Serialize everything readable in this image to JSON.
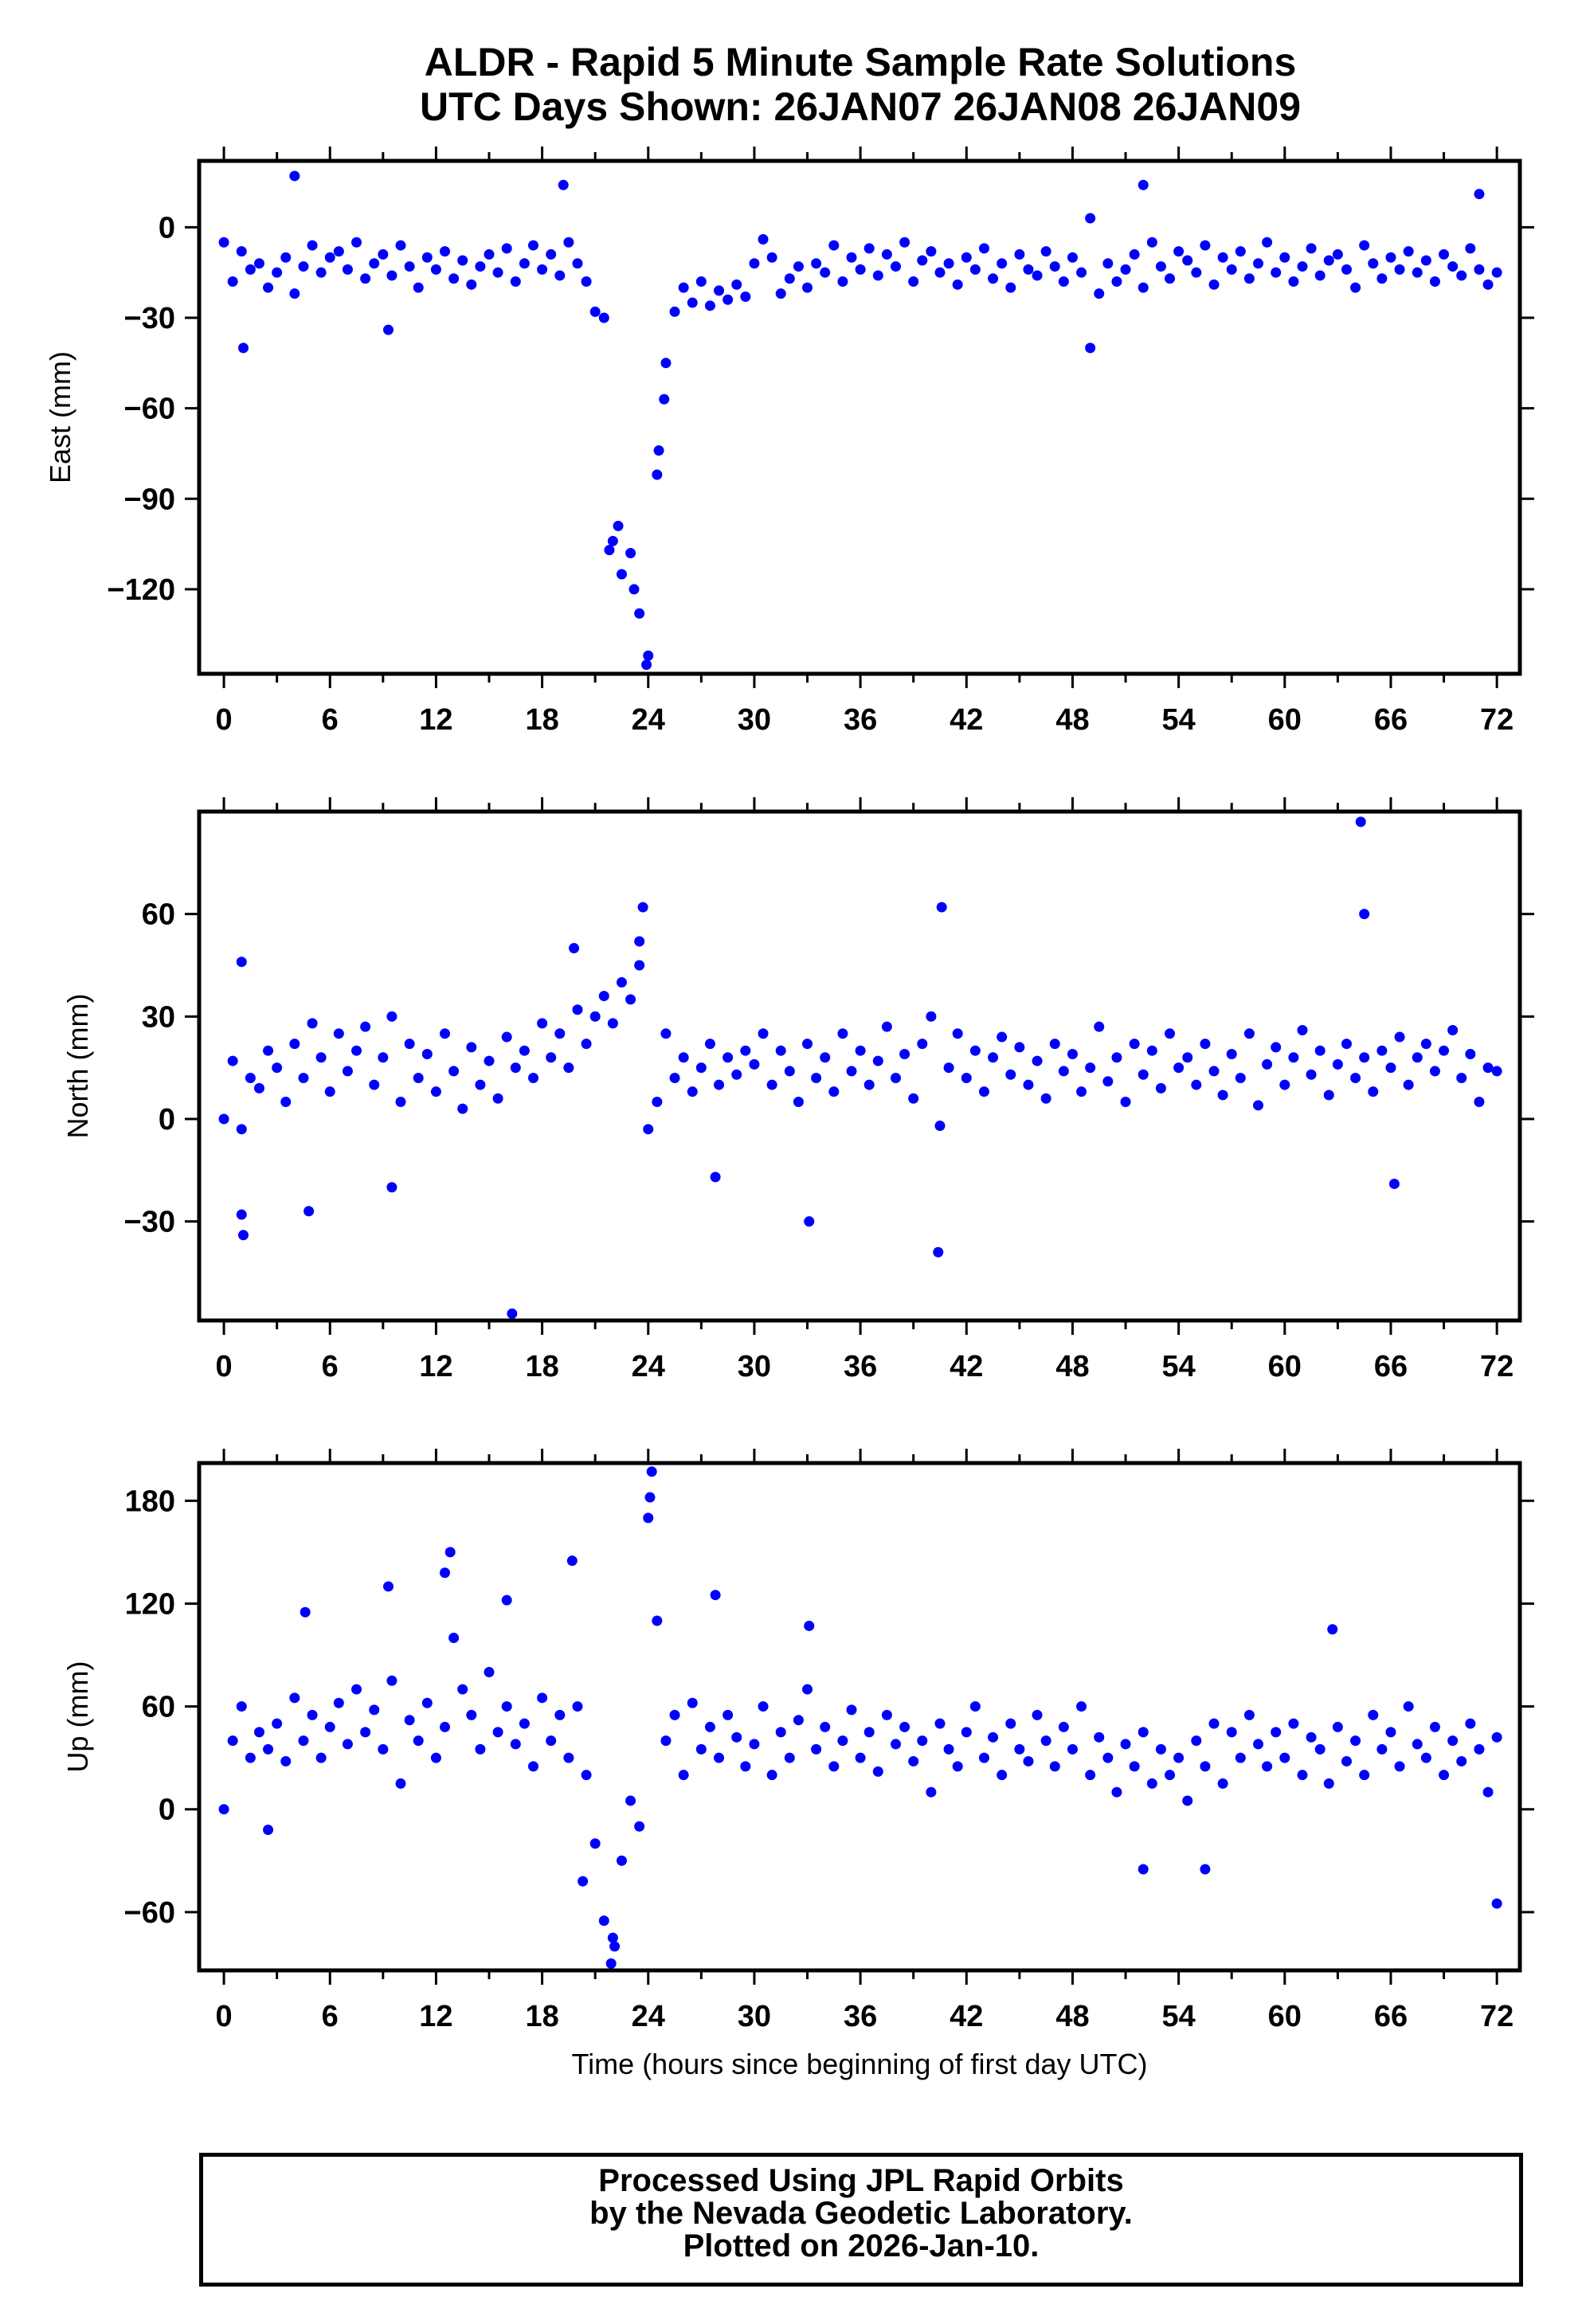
{
  "title": {
    "line1": "ALDR - Rapid 5 Minute Sample Rate Solutions",
    "line2": "UTC Days Shown:  26JAN07 26JAN08 26JAN09"
  },
  "footer": {
    "line1": "Processed Using JPL Rapid Orbits",
    "line2": "by the Nevada Geodetic Laboratory.",
    "line3": "Plotted on 2026-Jan-10."
  },
  "colors": {
    "points": "#0000ff",
    "axes": "#000000"
  },
  "chart_data": [
    {
      "type": "scatter",
      "name": "east",
      "ylabel": "East (mm)",
      "xlabel": "",
      "xlim": [
        -1.4,
        73.3
      ],
      "ylim": [
        -148,
        22
      ],
      "xticks": [
        0,
        6,
        12,
        18,
        24,
        30,
        36,
        42,
        48,
        54,
        60,
        66,
        72
      ],
      "yticks": [
        0,
        -30,
        -60,
        -90,
        -120
      ],
      "ytick_labels": [
        "0",
        "−30",
        "−60",
        "−90",
        "−120"
      ],
      "x_start": 0,
      "x_step": 0.5,
      "values": [
        -5,
        -18,
        -8,
        -14,
        -12,
        -20,
        -15,
        -10,
        -22,
        -13,
        -6,
        -15,
        -10,
        -8,
        -14,
        -5,
        -17,
        -12,
        -9,
        -16,
        -6,
        -13,
        -20,
        -10,
        -14,
        -8,
        -17,
        -11,
        -19,
        -13,
        -9,
        -15,
        -7,
        -18,
        -12,
        -6,
        -14,
        -9,
        -16,
        -5,
        -12,
        -18,
        -28,
        -30,
        -104,
        -115,
        -108,
        -128,
        -142,
        -82,
        -45,
        -28,
        -20,
        -25,
        -18,
        -26,
        -21,
        -24,
        -19,
        -23,
        -12,
        -4,
        -10,
        -22,
        -17,
        -13,
        -20,
        -12,
        -15,
        -6,
        -18,
        -10,
        -14,
        -7,
        -16,
        -9,
        -13,
        -5,
        -18,
        -11,
        -8,
        -15,
        -12,
        -19,
        -10,
        -14,
        -7,
        -17,
        -12,
        -20,
        -9,
        -14,
        -16,
        -8,
        -13,
        -18,
        -10,
        -15,
        3,
        -22,
        -12,
        -18,
        -14,
        -9,
        -20,
        -5,
        -13,
        -17,
        -8,
        -11,
        -15,
        -6,
        -19,
        -10,
        -14,
        -8,
        -17,
        -12,
        -5,
        -15,
        -10,
        -18,
        -13,
        -7,
        -16,
        -11,
        -9,
        -14,
        -20,
        -6,
        -12,
        -17,
        -10,
        -14,
        -8,
        -15,
        -11,
        -18,
        -9,
        -13,
        -16,
        -7,
        -14,
        -19,
        -15
      ],
      "outliers": [
        [
          4,
          17
        ],
        [
          19.2,
          14
        ],
        [
          1.1,
          -40
        ],
        [
          9.3,
          -34
        ],
        [
          52,
          14
        ],
        [
          49,
          -40
        ],
        [
          21.8,
          -107
        ],
        [
          22.3,
          -99
        ],
        [
          23.2,
          -120
        ],
        [
          23.9,
          -145
        ],
        [
          24.6,
          -74
        ],
        [
          24.9,
          -57
        ],
        [
          71,
          11
        ]
      ]
    },
    {
      "type": "scatter",
      "name": "north",
      "ylabel": "North (mm)",
      "xlabel": "",
      "xlim": [
        -1.4,
        73.3
      ],
      "ylim": [
        -59,
        90
      ],
      "xticks": [
        0,
        6,
        12,
        18,
        24,
        30,
        36,
        42,
        48,
        54,
        60,
        66,
        72
      ],
      "yticks": [
        60,
        30,
        0,
        -30
      ],
      "ytick_labels": [
        "60",
        "30",
        "0",
        "−30"
      ],
      "x_start": 0,
      "x_step": 0.5,
      "values": [
        0,
        17,
        -3,
        12,
        9,
        20,
        15,
        5,
        22,
        12,
        28,
        18,
        8,
        25,
        14,
        20,
        27,
        10,
        18,
        30,
        5,
        22,
        12,
        19,
        8,
        25,
        14,
        3,
        21,
        10,
        17,
        6,
        24,
        15,
        20,
        12,
        28,
        18,
        25,
        15,
        32,
        22,
        30,
        36,
        28,
        40,
        35,
        45,
        -3,
        5,
        25,
        12,
        18,
        8,
        15,
        22,
        10,
        18,
        13,
        20,
        16,
        25,
        10,
        20,
        14,
        5,
        22,
        12,
        18,
        8,
        25,
        14,
        20,
        10,
        17,
        27,
        12,
        19,
        6,
        22,
        30,
        -2,
        15,
        25,
        12,
        20,
        8,
        18,
        24,
        13,
        21,
        10,
        17,
        6,
        22,
        14,
        19,
        8,
        15,
        27,
        11,
        18,
        5,
        22,
        13,
        20,
        9,
        25,
        15,
        18,
        10,
        22,
        14,
        7,
        19,
        12,
        25,
        4,
        16,
        21,
        10,
        18,
        26,
        13,
        20,
        7,
        16,
        22,
        12,
        18,
        8,
        20,
        15,
        24,
        10,
        18,
        22,
        14,
        20,
        26,
        12,
        19,
        5,
        15,
        14
      ],
      "outliers": [
        [
          16.3,
          -57
        ],
        [
          64.3,
          87
        ],
        [
          64.5,
          60
        ],
        [
          40.4,
          -39
        ],
        [
          1.1,
          -34
        ],
        [
          1,
          -28
        ],
        [
          1,
          46
        ],
        [
          23.7,
          62
        ],
        [
          4.8,
          -27
        ],
        [
          9.5,
          -20
        ],
        [
          33.1,
          -30
        ],
        [
          27.8,
          -17
        ],
        [
          40.6,
          62
        ],
        [
          66.2,
          -19
        ],
        [
          19.8,
          50
        ],
        [
          23.5,
          52
        ]
      ]
    },
    {
      "type": "scatter",
      "name": "up",
      "ylabel": "Up (mm)",
      "xlabel": "Time (hours since beginning of first day UTC)",
      "xlim": [
        -1.4,
        73.3
      ],
      "ylim": [
        -94,
        202
      ],
      "xticks": [
        0,
        6,
        12,
        18,
        24,
        30,
        36,
        42,
        48,
        54,
        60,
        66,
        72
      ],
      "yticks": [
        180,
        120,
        60,
        0,
        -60
      ],
      "ytick_labels": [
        "180",
        "120",
        "60",
        "0",
        "−60"
      ],
      "x_start": 0,
      "x_step": 0.5,
      "values": [
        0,
        40,
        60,
        30,
        45,
        35,
        50,
        28,
        65,
        40,
        55,
        30,
        48,
        62,
        38,
        70,
        45,
        58,
        35,
        75,
        15,
        52,
        40,
        62,
        30,
        48,
        100,
        70,
        55,
        35,
        80,
        45,
        60,
        38,
        50,
        25,
        65,
        40,
        55,
        30,
        60,
        20,
        -20,
        -65,
        -75,
        -30,
        5,
        -10,
        170,
        110,
        40,
        55,
        20,
        62,
        35,
        48,
        30,
        55,
        42,
        25,
        38,
        60,
        20,
        45,
        30,
        52,
        70,
        35,
        48,
        25,
        40,
        58,
        30,
        45,
        22,
        55,
        38,
        48,
        28,
        40,
        10,
        50,
        35,
        25,
        45,
        60,
        30,
        42,
        20,
        50,
        35,
        28,
        55,
        40,
        25,
        48,
        35,
        60,
        20,
        42,
        30,
        10,
        38,
        25,
        45,
        15,
        35,
        20,
        30,
        5,
        40,
        25,
        50,
        15,
        45,
        30,
        55,
        38,
        25,
        45,
        30,
        50,
        20,
        42,
        35,
        15,
        48,
        28,
        40,
        20,
        55,
        35,
        45,
        25,
        60,
        38,
        30,
        48,
        20,
        40,
        28,
        50,
        35,
        10,
        42
      ],
      "outliers": [
        [
          24.2,
          197
        ],
        [
          24.1,
          182
        ],
        [
          12.8,
          150
        ],
        [
          12.5,
          138
        ],
        [
          21.9,
          -90
        ],
        [
          22.1,
          -80
        ],
        [
          72,
          -55
        ],
        [
          27.8,
          125
        ],
        [
          16,
          122
        ],
        [
          19.7,
          145
        ],
        [
          9.3,
          130
        ],
        [
          4.6,
          115
        ],
        [
          33.1,
          107
        ],
        [
          62.7,
          105
        ],
        [
          2.5,
          -12
        ],
        [
          20.3,
          -42
        ],
        [
          52,
          -35
        ],
        [
          55.5,
          -35
        ]
      ]
    }
  ]
}
